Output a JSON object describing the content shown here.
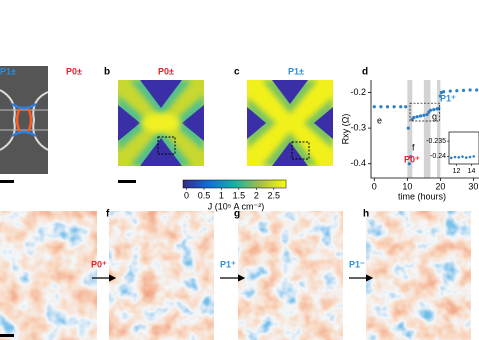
{
  "figure": {
    "a": {
      "label_left": "P1±",
      "label_right": "P0±"
    },
    "b": {
      "panel": "b",
      "label": "P0±"
    },
    "c": {
      "panel": "c",
      "label": "P1±"
    },
    "colorbar": {
      "label": "J (10⁵ A cm⁻²)",
      "clim": [
        -0.1,
        2.85
      ],
      "ticks": [
        0,
        0.5,
        1,
        1.5,
        2,
        2.5
      ]
    },
    "d": {
      "panel": "d"
    },
    "bottom": {
      "f": "f",
      "g": "g",
      "h": "h",
      "arrow1": "P0⁺",
      "arrow2": "P1⁺",
      "arrow3": "P1⁻"
    }
  },
  "chart_data": {
    "type": "scatter",
    "ylabel": "Rxy (Ω)",
    "xlabel": "time (hours)",
    "color": "#2b7fc7",
    "x": [
      0,
      2,
      4,
      6,
      8,
      9.5,
      10.3,
      10.6,
      11,
      11.5,
      12,
      13,
      14,
      15,
      16,
      16.5,
      17,
      18,
      19,
      19.5,
      20,
      20.3,
      21,
      23,
      25,
      27,
      29,
      31
    ],
    "values": [
      -0.24,
      -0.24,
      -0.24,
      -0.24,
      -0.24,
      -0.24,
      -0.3,
      -0.4,
      -0.38,
      -0.275,
      -0.27,
      -0.268,
      -0.266,
      -0.264,
      -0.262,
      -0.255,
      -0.25,
      -0.248,
      -0.246,
      -0.245,
      -0.21,
      -0.2,
      -0.198,
      -0.196,
      -0.195,
      -0.194,
      -0.193,
      -0.193
    ],
    "xlim": [
      -1,
      32
    ],
    "ylim": [
      -0.44,
      -0.165
    ],
    "xticks": [
      0,
      10,
      20,
      30
    ],
    "yticks": [
      -0.4,
      -0.3,
      -0.2
    ],
    "shaded": [
      [
        10,
        11.5
      ],
      [
        15,
        17
      ],
      [
        19,
        20
      ]
    ],
    "annotations": {
      "e": "e",
      "f": "f",
      "g": "g",
      "p1": "P1⁺",
      "p0": "P0⁺"
    },
    "inset": {
      "xlim": [
        11,
        15
      ],
      "ylim": [
        -0.2425,
        -0.232
      ],
      "xticks": [
        12,
        14
      ],
      "yticks": [
        -0.235,
        -0.24
      ],
      "x": [
        11.3,
        11.8,
        12.3,
        12.8,
        13.3,
        13.8,
        14.3
      ],
      "values": [
        -0.2405,
        -0.2402,
        -0.2403,
        -0.2401,
        -0.2404,
        -0.2402,
        -0.24
      ]
    }
  }
}
